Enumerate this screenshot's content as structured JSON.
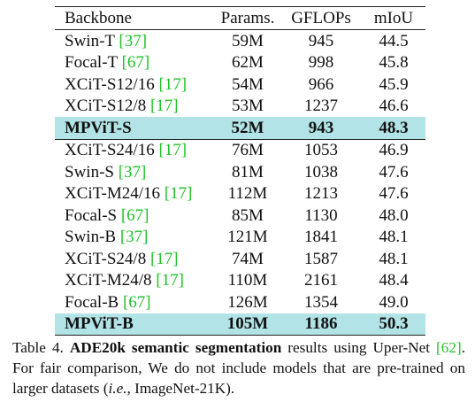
{
  "table": {
    "headers": [
      "Backbone",
      "Params.",
      "GFLOPs",
      "mIoU"
    ],
    "groups": [
      [
        {
          "name": "Swin-T ",
          "ref": "[37]",
          "params": "59M",
          "gflops": "945",
          "miou": "44.5"
        },
        {
          "name": "Focal-T ",
          "ref": "[67]",
          "params": "62M",
          "gflops": "998",
          "miou": "45.8"
        },
        {
          "name": "XCiT-S12/16 ",
          "ref": "[17]",
          "params": "54M",
          "gflops": "966",
          "miou": "45.9"
        },
        {
          "name": "XCiT-S12/8 ",
          "ref": "[17]",
          "params": "53M",
          "gflops": "1237",
          "miou": "46.6"
        },
        {
          "name": "MPViT-S",
          "ref": "",
          "params": "52M",
          "gflops": "943",
          "miou": "48.3",
          "highlight": true
        }
      ],
      [
        {
          "name": "XCiT-S24/16 ",
          "ref": "[17]",
          "params": "76M",
          "gflops": "1053",
          "miou": "46.9"
        },
        {
          "name": "Swin-S ",
          "ref": "[37]",
          "params": "81M",
          "gflops": "1038",
          "miou": "47.6"
        },
        {
          "name": "XCiT-M24/16 ",
          "ref": "[17]",
          "params": "112M",
          "gflops": "1213",
          "miou": "47.6"
        },
        {
          "name": "Focal-S ",
          "ref": "[67]",
          "params": "85M",
          "gflops": "1130",
          "miou": "48.0"
        },
        {
          "name": "Swin-B ",
          "ref": "[37]",
          "params": "121M",
          "gflops": "1841",
          "miou": "48.1"
        },
        {
          "name": "XCiT-S24/8 ",
          "ref": "[17]",
          "params": "74M",
          "gflops": "1587",
          "miou": "48.1"
        },
        {
          "name": "XCiT-M24/8 ",
          "ref": "[17]",
          "params": "110M",
          "gflops": "2161",
          "miou": "48.4"
        },
        {
          "name": "Focal-B ",
          "ref": "[67]",
          "params": "126M",
          "gflops": "1354",
          "miou": "49.0"
        },
        {
          "name": "MPViT-B",
          "ref": "",
          "params": "105M",
          "gflops": "1186",
          "miou": "50.3",
          "highlight": true
        }
      ]
    ]
  },
  "caption": {
    "label": "Table 4.",
    "bold": "ADE20k semantic segmentation",
    "text1": " results using Uper-Net ",
    "cite": "[62]",
    "text2": ". For fair comparison, We do not include models that are pre-trained on larger datasets (",
    "italic": "i.e.,",
    "text3": " ImageNet-21K)."
  },
  "colors": {
    "highlight": "#b2e3e7",
    "citation": "#22c22a"
  }
}
